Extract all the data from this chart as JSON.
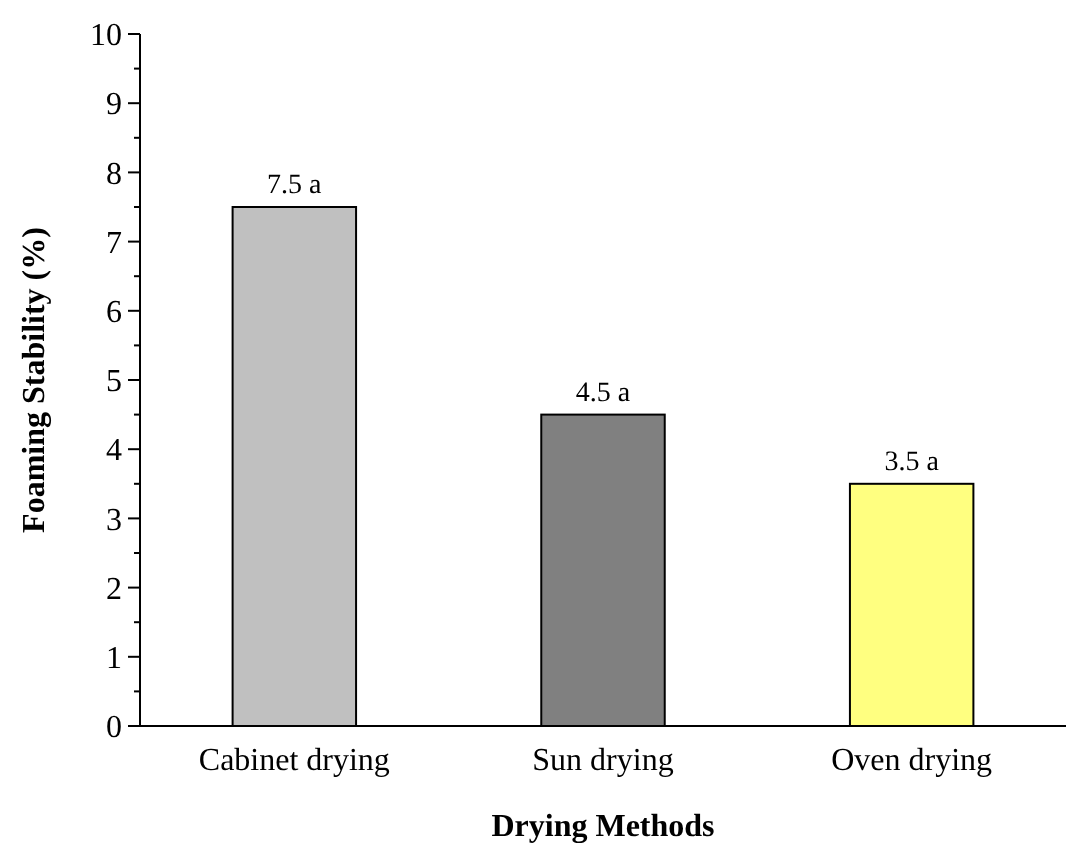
{
  "chart_data": {
    "type": "bar",
    "xlabel": "Drying Methods",
    "ylabel": "Foaming Stability (%)",
    "categories": [
      "Cabinet drying",
      "Sun drying",
      "Oven drying"
    ],
    "values": [
      7.5,
      4.5,
      3.5
    ],
    "colors": [
      "#c0c0c0",
      "#808080",
      "#ffff80"
    ],
    "value_labels": [
      "7.5 a",
      "4.5 a",
      "3.5 a"
    ],
    "ylim": [
      0,
      10
    ],
    "yticks": [
      0,
      {
        "value": 0.5,
        "label": null
      },
      1,
      {
        "value": 1.5,
        "label": null
      },
      2,
      {
        "value": 2.5,
        "label": null
      },
      3,
      {
        "value": 3.5,
        "label": null
      },
      4,
      {
        "value": 4.5,
        "label": null
      },
      5,
      {
        "value": 5.5,
        "label": null
      },
      6,
      {
        "value": 6.5,
        "label": null
      },
      7,
      {
        "value": 7.5,
        "label": null
      },
      8,
      {
        "value": 8.5,
        "label": null
      },
      9,
      {
        "value": 9.5,
        "label": null
      },
      10
    ],
    "grid": false
  }
}
